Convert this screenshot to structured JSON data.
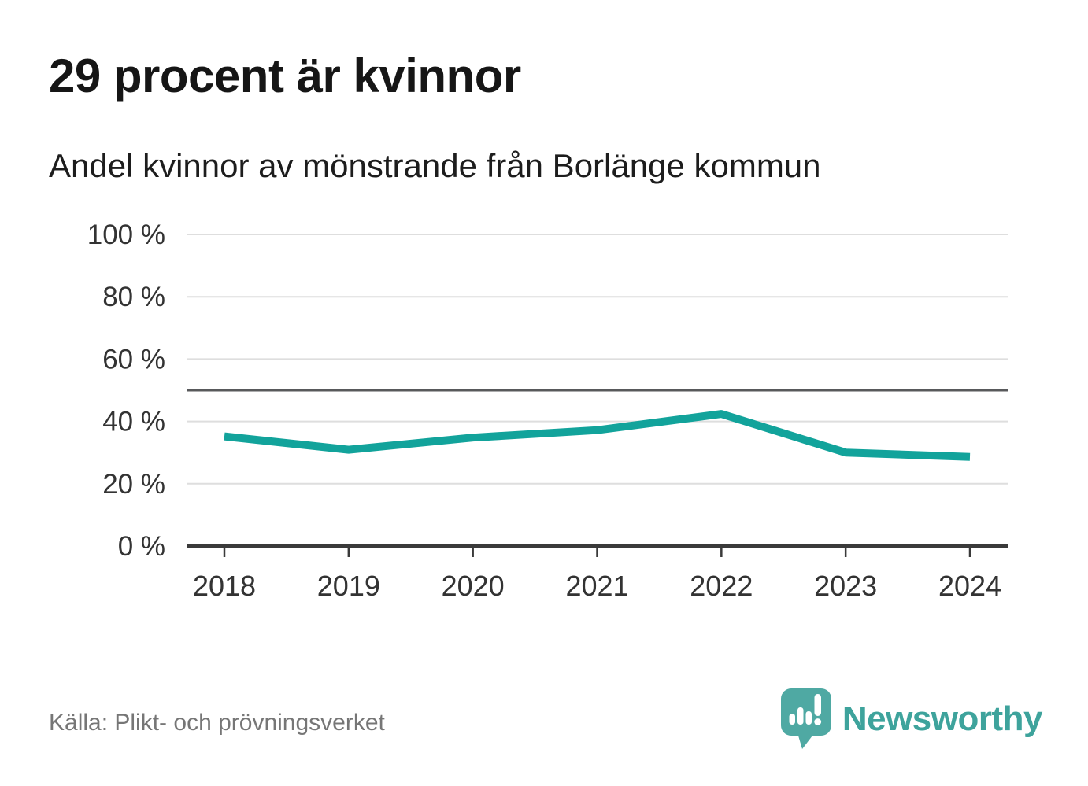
{
  "chart": {
    "title": "29 procent är kvinnor",
    "subtitle": "Andel kvinnor av mönstrande från Borlänge kommun"
  },
  "chart_data": {
    "type": "line",
    "x": [
      2018,
      2019,
      2020,
      2021,
      2022,
      2023,
      2024
    ],
    "series": [
      {
        "name": "Andel kvinnor av mönstrande",
        "values": [
          35.2,
          30.9,
          34.8,
          37.2,
          42.4,
          30.0,
          28.6
        ]
      }
    ],
    "title": "29 procent är kvinnor",
    "subtitle": "Andel kvinnor av mönstrande från Borlänge kommun",
    "xlabel": "",
    "ylabel": "",
    "ylim": [
      0,
      100
    ],
    "yticks": [
      0,
      20,
      40,
      60,
      80,
      100
    ],
    "ytick_suffix": " %",
    "xtick_labels": [
      "2018",
      "2019",
      "2020",
      "2021",
      "2022",
      "2023",
      "2024"
    ],
    "reference_line": 50,
    "grid": true,
    "legend": false,
    "line_color": "#12A39B",
    "reference_color": "#58595B",
    "grid_color": "#DEDEDE",
    "axis_color": "#3A3A3A",
    "label_color": "#333333"
  },
  "footer": {
    "source": "Källa: Plikt- och prövningsverket",
    "brand": "Newsworthy",
    "brand_color": "#3EA39C",
    "logo_color": "#4FA9A3"
  }
}
